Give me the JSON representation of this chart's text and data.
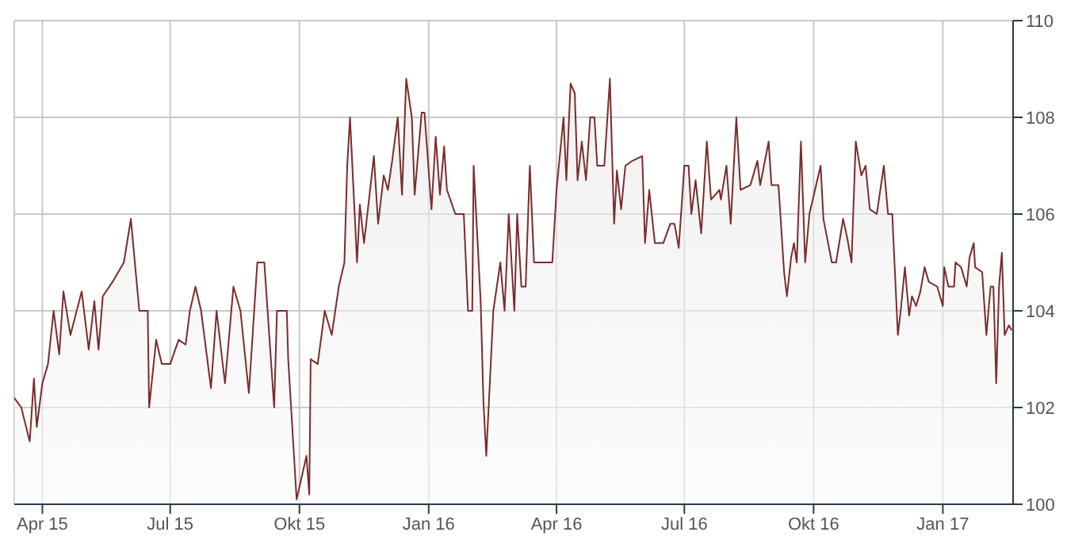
{
  "chart_data": {
    "type": "area",
    "color": "#7b2c2c",
    "x": [
      "2015-03-12",
      "2015-03-17",
      "2015-03-23",
      "2015-03-26",
      "2015-03-28",
      "2015-04-01",
      "2015-04-05",
      "2015-04-09",
      "2015-04-13",
      "2015-04-16",
      "2015-04-21",
      "2015-04-29",
      "2015-05-04",
      "2015-05-08",
      "2015-05-11",
      "2015-05-14",
      "2015-05-21",
      "2015-05-29",
      "2015-06-03",
      "2015-06-09",
      "2015-06-15",
      "2015-06-16",
      "2015-06-21",
      "2015-06-25",
      "2015-07-01",
      "2015-07-07",
      "2015-07-12",
      "2015-07-15",
      "2015-07-19",
      "2015-07-23",
      "2015-07-30",
      "2015-08-03",
      "2015-08-09",
      "2015-08-15",
      "2015-08-20",
      "2015-08-26",
      "2015-09-01",
      "2015-09-06",
      "2015-09-13",
      "2015-09-15",
      "2015-09-22",
      "2015-09-23",
      "2015-09-29",
      "2015-10-06",
      "2015-10-08",
      "2015-10-09",
      "2015-10-14",
      "2015-10-19",
      "2015-10-24",
      "2015-10-29",
      "2015-11-02",
      "2015-11-04",
      "2015-11-06",
      "2015-11-11",
      "2015-11-13",
      "2015-11-16",
      "2015-11-23",
      "2015-11-26",
      "2015-11-30",
      "2015-12-03",
      "2015-12-06",
      "2015-12-10",
      "2015-12-13",
      "2015-12-16",
      "2015-12-20",
      "2015-12-22",
      "2015-12-27",
      "2015-12-29",
      "2016-01-03",
      "2016-01-06",
      "2016-01-09",
      "2016-01-12",
      "2016-01-14",
      "2016-01-20",
      "2016-01-26",
      "2016-01-29",
      "2016-02-01",
      "2016-02-02",
      "2016-02-07",
      "2016-02-09",
      "2016-02-11",
      "2016-02-16",
      "2016-02-21",
      "2016-02-24",
      "2016-02-27",
      "2016-03-02",
      "2016-03-04",
      "2016-03-07",
      "2016-03-10",
      "2016-03-13",
      "2016-03-16",
      "2016-03-29",
      "2016-04-01",
      "2016-04-06",
      "2016-04-08",
      "2016-04-11",
      "2016-04-14",
      "2016-04-16",
      "2016-04-19",
      "2016-04-22",
      "2016-04-25",
      "2016-04-28",
      "2016-04-30",
      "2016-05-05",
      "2016-05-09",
      "2016-05-12",
      "2016-05-14",
      "2016-05-17",
      "2016-05-20",
      "2016-05-25",
      "2016-06-01",
      "2016-06-03",
      "2016-06-06",
      "2016-06-10",
      "2016-06-16",
      "2016-06-21",
      "2016-06-24",
      "2016-06-27",
      "2016-07-01",
      "2016-07-04",
      "2016-07-06",
      "2016-07-09",
      "2016-07-13",
      "2016-07-17",
      "2016-07-20",
      "2016-07-26",
      "2016-07-27",
      "2016-07-31",
      "2016-08-03",
      "2016-08-07",
      "2016-08-10",
      "2016-08-17",
      "2016-08-22",
      "2016-08-24",
      "2016-08-30",
      "2016-09-01",
      "2016-09-06",
      "2016-09-10",
      "2016-09-12",
      "2016-09-15",
      "2016-09-17",
      "2016-09-19",
      "2016-09-22",
      "2016-09-25",
      "2016-09-28",
      "2016-10-06",
      "2016-10-08",
      "2016-10-14",
      "2016-10-17",
      "2016-10-22",
      "2016-10-25",
      "2016-10-28",
      "2016-10-31",
      "2016-11-04",
      "2016-11-07",
      "2016-11-10",
      "2016-11-15",
      "2016-11-20",
      "2016-11-23",
      "2016-11-26",
      "2016-11-30",
      "2016-12-02",
      "2016-12-05",
      "2016-12-08",
      "2016-12-10",
      "2016-12-13",
      "2016-12-16",
      "2016-12-19",
      "2016-12-22",
      "2016-12-28",
      "2017-01-01",
      "2017-01-02",
      "2017-01-05",
      "2017-01-09",
      "2017-01-10",
      "2017-01-14",
      "2017-01-18",
      "2017-01-20",
      "2017-01-23",
      "2017-01-24",
      "2017-01-29",
      "2017-02-01",
      "2017-02-04",
      "2017-02-06",
      "2017-02-08",
      "2017-02-10",
      "2017-02-12",
      "2017-02-14",
      "2017-02-17",
      "2017-02-19"
    ],
    "values": [
      102.2,
      102.0,
      101.3,
      102.6,
      101.6,
      102.5,
      102.9,
      104.0,
      103.1,
      104.4,
      103.5,
      104.4,
      103.2,
      104.2,
      103.2,
      104.3,
      104.6,
      105.0,
      105.9,
      104.0,
      104.0,
      102.0,
      103.4,
      102.9,
      102.9,
      103.4,
      103.3,
      104.0,
      104.5,
      104.0,
      102.4,
      104.0,
      102.5,
      104.5,
      104.0,
      102.3,
      105.0,
      105.0,
      102.0,
      104.0,
      104.0,
      103.0,
      100.1,
      101.0,
      100.2,
      103.0,
      102.9,
      104.0,
      103.5,
      104.5,
      105.0,
      107.0,
      108.0,
      105.0,
      106.2,
      105.4,
      107.2,
      105.8,
      106.8,
      106.5,
      107.1,
      108.0,
      106.4,
      108.8,
      108.0,
      106.4,
      108.1,
      108.1,
      106.1,
      107.6,
      106.4,
      107.4,
      106.5,
      106.0,
      106.0,
      104.0,
      104.0,
      107.0,
      104.2,
      102.1,
      101.0,
      104.0,
      105.0,
      104.0,
      106.0,
      104.0,
      106.0,
      104.5,
      104.5,
      107.0,
      105.0,
      105.0,
      106.5,
      108.0,
      106.7,
      108.7,
      108.5,
      106.7,
      107.5,
      106.7,
      108.0,
      108.0,
      107.0,
      107.0,
      108.8,
      105.8,
      106.9,
      106.1,
      107.0,
      107.1,
      107.2,
      105.4,
      106.5,
      105.4,
      105.4,
      105.8,
      105.8,
      105.3,
      107.0,
      107.0,
      106.0,
      106.7,
      105.6,
      107.5,
      106.3,
      106.5,
      106.3,
      107.0,
      105.8,
      108.0,
      106.5,
      106.6,
      107.1,
      106.6,
      107.5,
      106.6,
      106.6,
      104.8,
      104.3,
      105.1,
      105.4,
      105.0,
      107.5,
      105.0,
      106.0,
      107.0,
      105.9,
      105.0,
      105.0,
      105.9,
      105.5,
      105.0,
      107.5,
      106.8,
      107.0,
      106.1,
      106.0,
      107.0,
      106.0,
      106.0,
      103.5,
      104.0,
      104.9,
      103.9,
      104.3,
      104.1,
      104.4,
      104.9,
      104.6,
      104.5,
      104.1,
      104.9,
      104.5,
      104.5,
      105.0,
      104.9,
      104.5,
      105.1,
      105.4,
      104.9,
      104.8,
      103.5,
      104.5,
      104.5,
      102.5,
      104.5,
      105.2,
      103.5,
      103.7,
      103.6
    ],
    "xlim": [
      "2015-03-12",
      "2017-02-20"
    ],
    "xticks": [
      {
        "value": "2015-04-01",
        "label": "Apr 15"
      },
      {
        "value": "2015-07-01",
        "label": "Jul 15"
      },
      {
        "value": "2015-10-01",
        "label": "Okt 15"
      },
      {
        "value": "2016-01-01",
        "label": "Jan 16"
      },
      {
        "value": "2016-04-01",
        "label": "Apr 16"
      },
      {
        "value": "2016-07-01",
        "label": "Jul 16"
      },
      {
        "value": "2016-10-01",
        "label": "Okt 16"
      },
      {
        "value": "2017-01-01",
        "label": "Jan 17"
      }
    ],
    "ylim": [
      100,
      110
    ],
    "yticks": [
      100,
      102,
      104,
      106,
      108,
      110
    ],
    "grid": true
  }
}
